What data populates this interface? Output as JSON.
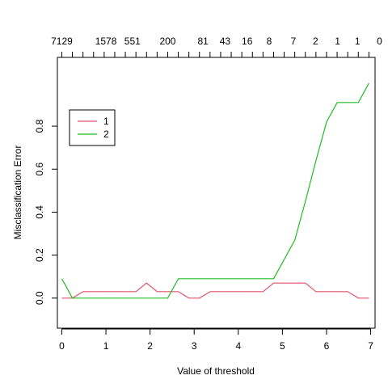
{
  "chart_data": {
    "type": "line",
    "title": "",
    "xlabel": "Value of threshold",
    "ylabel": "Misclassification Error",
    "xlim": [
      -0.1,
      7.1
    ],
    "ylim": [
      -0.14,
      1.12
    ],
    "x_ticks": [
      0,
      1,
      2,
      3,
      4,
      5,
      6,
      7
    ],
    "y_ticks": [
      0.0,
      0.2,
      0.4,
      0.6,
      0.8
    ],
    "y_tick_labels": [
      "0.0",
      "0.2",
      "0.4",
      "0.6",
      "0.8"
    ],
    "top_axis": {
      "tick_positions": [
        0,
        0.24,
        0.48,
        0.72,
        0.96,
        1.2,
        1.44,
        1.68,
        1.92,
        2.16,
        2.4,
        2.64,
        2.88,
        3.12,
        3.36,
        3.6,
        3.84,
        4.08,
        4.32,
        4.56,
        4.8,
        5.04,
        5.28,
        5.52,
        5.76,
        6.0,
        6.24,
        6.48,
        6.72,
        6.96
      ],
      "labels": [
        {
          "x": 0,
          "text": "7129"
        },
        {
          "x": 1,
          "text": "1578"
        },
        {
          "x": 1.6,
          "text": "551"
        },
        {
          "x": 2.4,
          "text": "200"
        },
        {
          "x": 3.2,
          "text": "81"
        },
        {
          "x": 3.7,
          "text": "43"
        },
        {
          "x": 4.2,
          "text": "16"
        },
        {
          "x": 4.7,
          "text": "8"
        },
        {
          "x": 5.25,
          "text": "7"
        },
        {
          "x": 5.75,
          "text": "2"
        },
        {
          "x": 6.25,
          "text": "1"
        },
        {
          "x": 6.7,
          "text": "1"
        },
        {
          "x": 7.2,
          "text": "0"
        }
      ]
    },
    "series": [
      {
        "name": "1",
        "color": "#DF536B",
        "x": [
          0,
          0.24,
          0.48,
          0.72,
          0.96,
          1.2,
          1.44,
          1.68,
          1.92,
          2.16,
          2.4,
          2.64,
          2.88,
          3.12,
          3.36,
          3.6,
          3.84,
          4.08,
          4.32,
          4.56,
          4.8,
          5.04,
          5.28,
          5.52,
          5.76,
          6.0,
          6.24,
          6.48,
          6.72,
          6.96
        ],
        "values": [
          0.0,
          0.0,
          0.03,
          0.03,
          0.03,
          0.03,
          0.03,
          0.03,
          0.07,
          0.03,
          0.03,
          0.03,
          0.0,
          0.0,
          0.03,
          0.03,
          0.03,
          0.03,
          0.03,
          0.03,
          0.07,
          0.07,
          0.07,
          0.07,
          0.03,
          0.03,
          0.03,
          0.03,
          0.0,
          0.0
        ]
      },
      {
        "name": "2",
        "color": "#22BB22",
        "x": [
          0,
          0.24,
          0.48,
          0.72,
          0.96,
          1.2,
          1.44,
          1.68,
          1.92,
          2.16,
          2.4,
          2.64,
          2.88,
          3.12,
          3.36,
          3.6,
          3.84,
          4.08,
          4.32,
          4.56,
          4.8,
          5.04,
          5.28,
          5.52,
          5.76,
          6.0,
          6.24,
          6.48,
          6.72,
          6.96
        ],
        "values": [
          0.09,
          0.0,
          0.0,
          0.0,
          0.0,
          0.0,
          0.0,
          0.0,
          0.0,
          0.0,
          0.0,
          0.09,
          0.09,
          0.09,
          0.09,
          0.09,
          0.09,
          0.09,
          0.09,
          0.09,
          0.09,
          0.18,
          0.27,
          0.45,
          0.64,
          0.82,
          0.91,
          0.91,
          0.91,
          1.0
        ]
      }
    ],
    "legend": {
      "placement": "top-left",
      "entries": [
        "1",
        "2"
      ]
    },
    "grid": false
  }
}
